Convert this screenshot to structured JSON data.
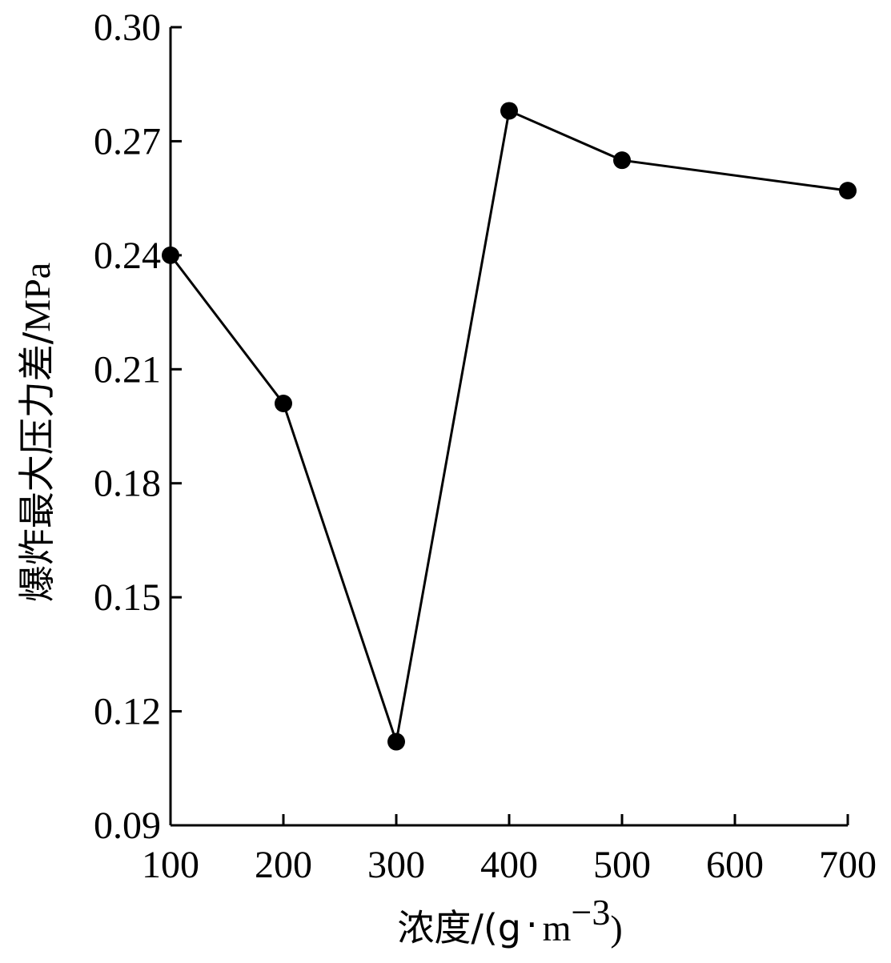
{
  "chart_data": {
    "type": "line",
    "title": "",
    "xlabel": {
      "main": "浓度/(g",
      "dot": "·",
      "unit": "m",
      "exponent": "−3",
      "close": ")"
    },
    "ylabel": {
      "main": "爆炸最大压力差/",
      "unit": "MPa"
    },
    "xlim": [
      100,
      700
    ],
    "ylim": [
      0.09,
      0.3
    ],
    "x_ticks": [
      100,
      200,
      300,
      400,
      500,
      600,
      700
    ],
    "x_tick_labels": [
      "100",
      "200",
      "300",
      "400",
      "500",
      "600",
      "700"
    ],
    "y_ticks": [
      0.09,
      0.12,
      0.15,
      0.18,
      0.21,
      0.24,
      0.27,
      0.3
    ],
    "y_tick_labels": [
      "0.09",
      "0.12",
      "0.15",
      "0.18",
      "0.21",
      "0.24",
      "0.27",
      "0.30"
    ],
    "grid": false,
    "series": [
      {
        "x": [
          100,
          200,
          300,
          400,
          500,
          700
        ],
        "values": [
          0.24,
          0.201,
          0.112,
          0.278,
          0.265,
          0.257
        ],
        "color": "#000000",
        "marker": "filled-circle"
      }
    ]
  }
}
